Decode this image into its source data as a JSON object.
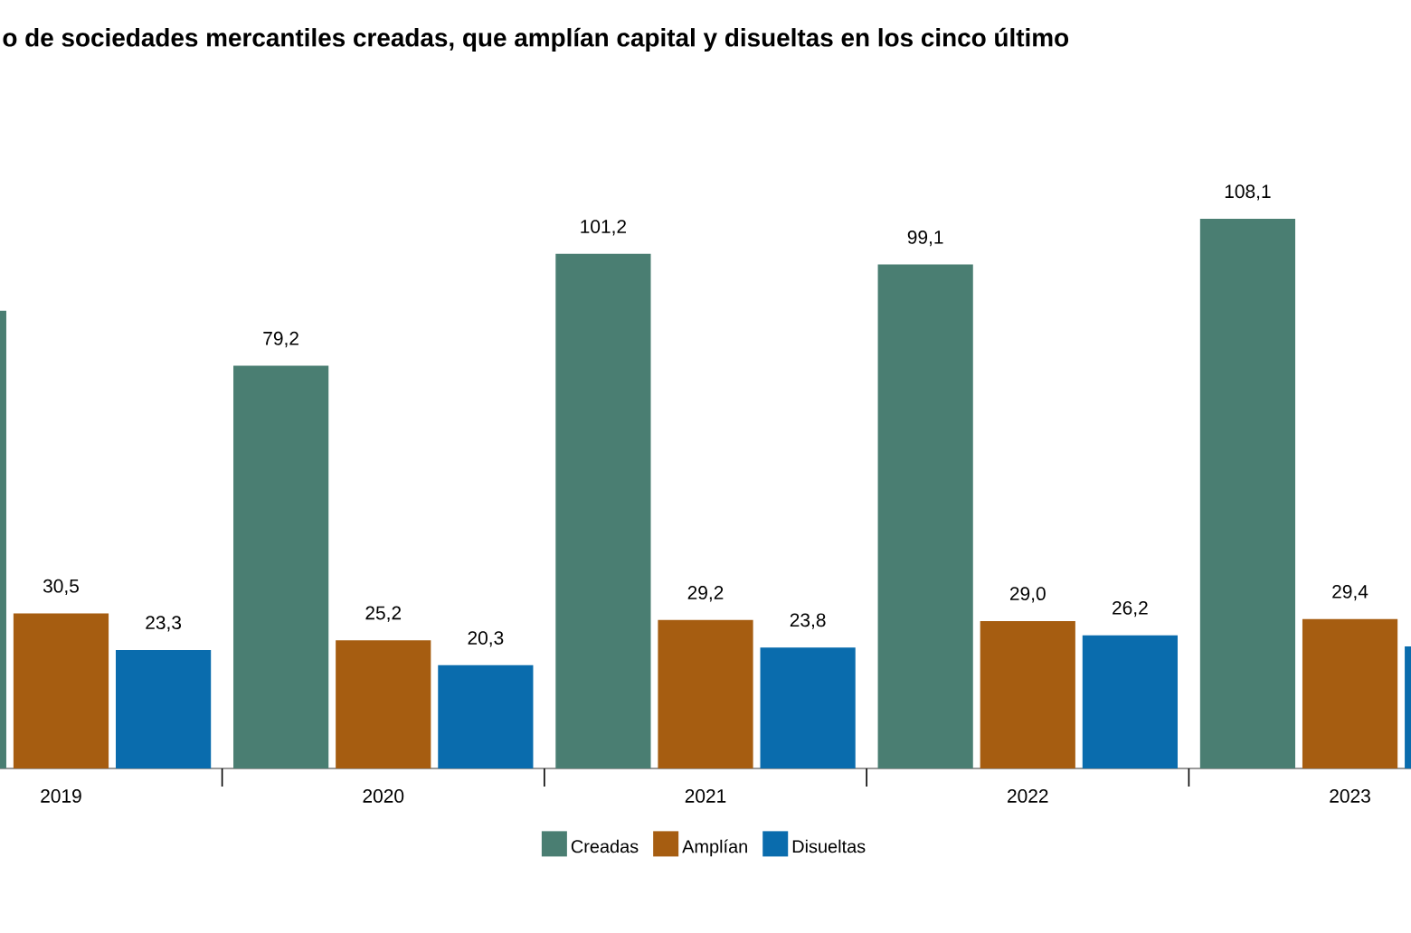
{
  "chart_data": {
    "type": "bar",
    "title": "o de sociedades mercantiles creadas, que amplían capital y disueltas en los cinco último",
    "categories": [
      "2019",
      "2020",
      "2021",
      "2022",
      "2023"
    ],
    "series": [
      {
        "name": "Creadas",
        "color": "#4a7e72",
        "values": [
          90,
          79.2,
          101.2,
          99.1,
          108.1
        ],
        "value_labels": [
          null,
          "79,2",
          "101,2",
          "99,1",
          "108,1"
        ]
      },
      {
        "name": "Amplían",
        "color": "#a65d11",
        "values": [
          30.5,
          25.2,
          29.2,
          29.0,
          29.4
        ],
        "value_labels": [
          "30,5",
          "25,2",
          "29,2",
          "29,0",
          "29,4"
        ]
      },
      {
        "name": "Disueltas",
        "color": "#0a6cad",
        "values": [
          23.3,
          20.3,
          23.8,
          26.2,
          24
        ],
        "value_labels": [
          "23,3",
          "20,3",
          "23,8",
          "26,2",
          null
        ]
      }
    ],
    "legend": "bottom"
  }
}
